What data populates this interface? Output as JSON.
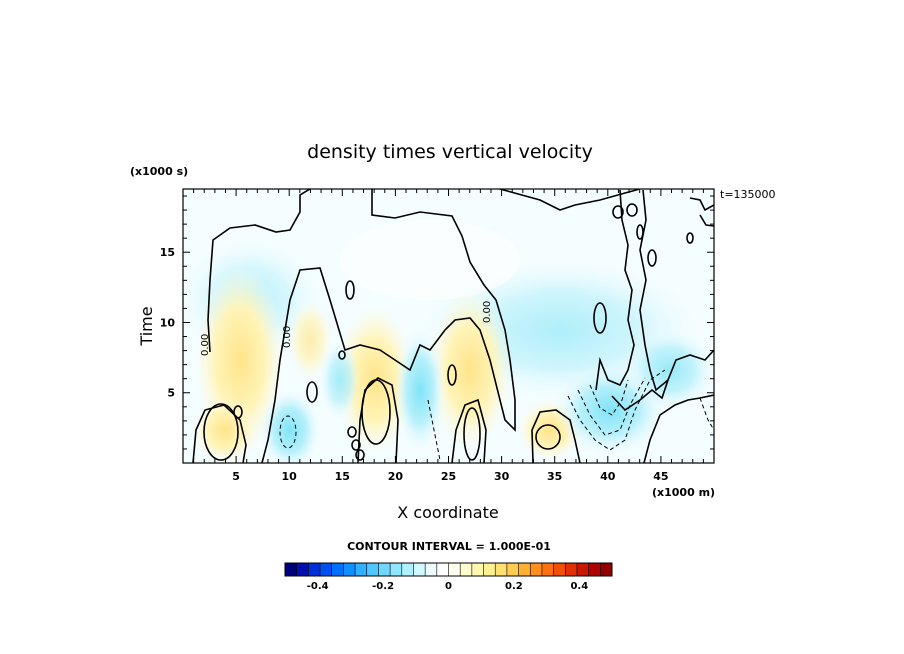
{
  "chart_data": {
    "type": "heatmap",
    "title": "density times vertical velocity",
    "xlabel": "X coordinate",
    "ylabel": "Time",
    "x_units": "(x1000 m)",
    "y_units": "(x1000 s)",
    "time_label": "t=135000",
    "xlim": [
      0,
      50
    ],
    "ylim": [
      0,
      19.5
    ],
    "x_ticks": [
      "5",
      "10",
      "15",
      "20",
      "25",
      "30",
      "35",
      "40",
      "45"
    ],
    "y_ticks": [
      "5",
      "10",
      "15"
    ],
    "contour_interval_text": "CONTOUR INTERVAL = 1.000E-01",
    "zero_contour_label": "0.00",
    "colorbar": {
      "range": [
        -0.5,
        0.5
      ],
      "tick_labels": [
        "-0.4",
        "-0.2",
        "0",
        "0.2",
        "0.4"
      ],
      "tick_values": [
        -0.4,
        -0.2,
        0,
        0.2,
        0.4
      ],
      "colors": [
        "#00007f",
        "#0010b0",
        "#0030d8",
        "#0050f0",
        "#0070ff",
        "#1090ff",
        "#30b0ff",
        "#50c8ff",
        "#70d8ff",
        "#90e6ff",
        "#b0f0ff",
        "#d0f8ff",
        "#eefcff",
        "#ffffff",
        "#fffff0",
        "#ffffd0",
        "#fff8b0",
        "#fff090",
        "#ffe070",
        "#ffcc50",
        "#ffb030",
        "#ff9020",
        "#ff7010",
        "#f05000",
        "#e03000",
        "#c81800",
        "#b00000",
        "#900000"
      ]
    },
    "features": [
      {
        "kind": "positive",
        "x": 3.5,
        "y": 2.2,
        "value": 0.24
      },
      {
        "kind": "negative",
        "x": 9.3,
        "y": 1.8,
        "value": -0.12
      },
      {
        "kind": "positive",
        "x": 18.0,
        "y": 3.5,
        "value": 0.22
      },
      {
        "kind": "negative",
        "x": 23.6,
        "y": 4.0,
        "value": -0.08
      },
      {
        "kind": "positive",
        "x": 27.0,
        "y": 2.5,
        "value": 0.14
      },
      {
        "kind": "positive",
        "x": 35.0,
        "y": 2.0,
        "value": 0.18
      },
      {
        "kind": "negative",
        "x": 40.0,
        "y": 2.6,
        "value": -0.16
      },
      {
        "kind": "negative",
        "x": 45.0,
        "y": 3.5,
        "value": -0.06
      }
    ]
  }
}
